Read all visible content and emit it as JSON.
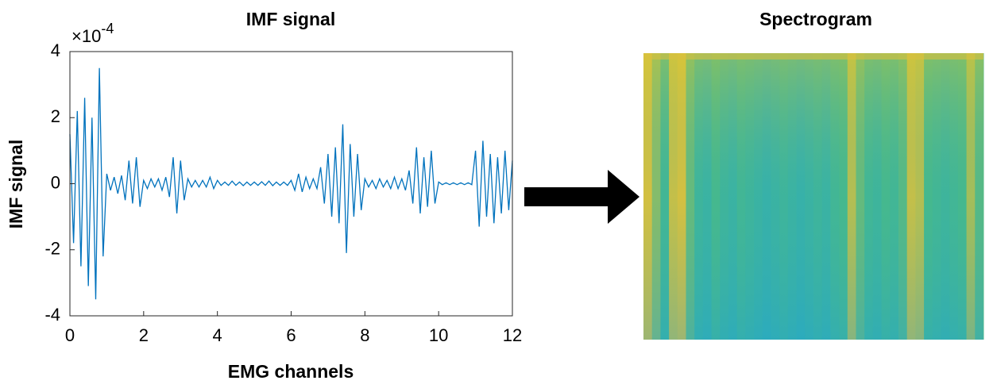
{
  "chart_data": [
    {
      "type": "line",
      "title": "IMF signal",
      "x_label": "EMG channels",
      "y_label": "IMF signal",
      "y_multiplier": {
        "base": "×10",
        "exponent": "-4"
      },
      "xlim": [
        0,
        12
      ],
      "ylim": [
        -4,
        4
      ],
      "xticks": [
        0,
        2,
        4,
        6,
        8,
        10,
        12
      ],
      "yticks": [
        -4,
        -2,
        0,
        2,
        4
      ],
      "x": [
        0,
        0.1,
        0.2,
        0.3,
        0.4,
        0.5,
        0.6,
        0.7,
        0.8,
        0.9,
        1,
        1.1,
        1.2,
        1.3,
        1.4,
        1.5,
        1.6,
        1.7,
        1.8,
        1.9,
        2,
        2.1,
        2.2,
        2.3,
        2.4,
        2.5,
        2.6,
        2.7,
        2.8,
        2.9,
        3,
        3.1,
        3.2,
        3.3,
        3.4,
        3.5,
        3.6,
        3.7,
        3.8,
        3.9,
        4,
        4.1,
        4.2,
        4.3,
        4.4,
        4.5,
        4.6,
        4.7,
        4.8,
        4.9,
        5,
        5.1,
        5.2,
        5.3,
        5.4,
        5.5,
        5.6,
        5.7,
        5.8,
        5.9,
        6,
        6.1,
        6.2,
        6.3,
        6.4,
        6.5,
        6.6,
        6.7,
        6.8,
        6.9,
        7,
        7.1,
        7.2,
        7.3,
        7.4,
        7.5,
        7.6,
        7.7,
        7.8,
        7.9,
        8,
        8.1,
        8.2,
        8.3,
        8.4,
        8.5,
        8.6,
        8.7,
        8.8,
        8.9,
        9,
        9.1,
        9.2,
        9.3,
        9.4,
        9.5,
        9.6,
        9.7,
        9.8,
        9.9,
        10,
        10.1,
        10.2,
        10.3,
        10.4,
        10.5,
        10.6,
        10.7,
        10.8,
        10.9,
        11,
        11.1,
        11.2,
        11.3,
        11.4,
        11.5,
        11.6,
        11.7,
        11.8,
        11.9,
        12
      ],
      "series": [
        {
          "name": "IMF signal",
          "color": "#0072bd",
          "values": [
            1.5,
            -1.8,
            2.2,
            -2.5,
            2.6,
            -3.1,
            2.0,
            -3.5,
            3.5,
            -2.2,
            0.3,
            -0.2,
            0.2,
            -0.3,
            0.25,
            -0.5,
            0.7,
            -0.6,
            0.8,
            -0.7,
            0.1,
            -0.15,
            0.15,
            -0.1,
            0.15,
            -0.2,
            0.2,
            -0.4,
            0.8,
            -0.9,
            0.7,
            -0.5,
            0.15,
            -0.1,
            0.1,
            -0.1,
            0.1,
            -0.1,
            0.2,
            -0.15,
            0.1,
            -0.05,
            0.05,
            -0.05,
            0.08,
            -0.05,
            0.05,
            -0.06,
            0.05,
            -0.05,
            0.05,
            -0.05,
            0.06,
            -0.05,
            0.08,
            -0.06,
            0.05,
            -0.05,
            0.05,
            -0.05,
            0.1,
            -0.2,
            0.3,
            -0.25,
            0.2,
            -0.15,
            0.15,
            -0.15,
            0.5,
            -0.6,
            0.9,
            -1.0,
            1.1,
            -1.2,
            1.8,
            -2.1,
            1.2,
            -1.0,
            0.9,
            -0.8,
            0.15,
            -0.1,
            0.1,
            -0.15,
            0.15,
            -0.1,
            0.1,
            -0.15,
            0.2,
            -0.15,
            0.15,
            -0.2,
            0.4,
            -0.6,
            1.1,
            -0.9,
            0.8,
            -0.7,
            1.0,
            -0.6,
            0.05,
            -0.03,
            0.03,
            -0.03,
            0.03,
            -0.03,
            0.03,
            -0.03,
            0.03,
            -0.03,
            1.0,
            -1.3,
            1.3,
            -1.0,
            0.9,
            -1.2,
            0.8,
            -0.9,
            1.0,
            -0.8,
            0.7
          ]
        }
      ]
    },
    {
      "type": "heatmap",
      "title": "Spectrogram",
      "values": [
        0.95,
        0.7,
        0.45,
        0.9,
        0.95,
        0.6,
        0.4,
        0.35,
        0.5,
        0.4,
        0.35,
        0.45,
        0.4,
        0.35,
        0.3,
        0.35,
        0.4,
        0.35,
        0.3,
        0.35,
        0.4,
        0.35,
        0.45,
        0.5,
        0.85,
        0.6,
        0.45,
        0.4,
        0.5,
        0.45,
        0.55,
        0.9,
        0.85,
        0.5,
        0.45,
        0.4,
        0.45,
        0.5,
        0.8,
        0.55
      ]
    }
  ]
}
